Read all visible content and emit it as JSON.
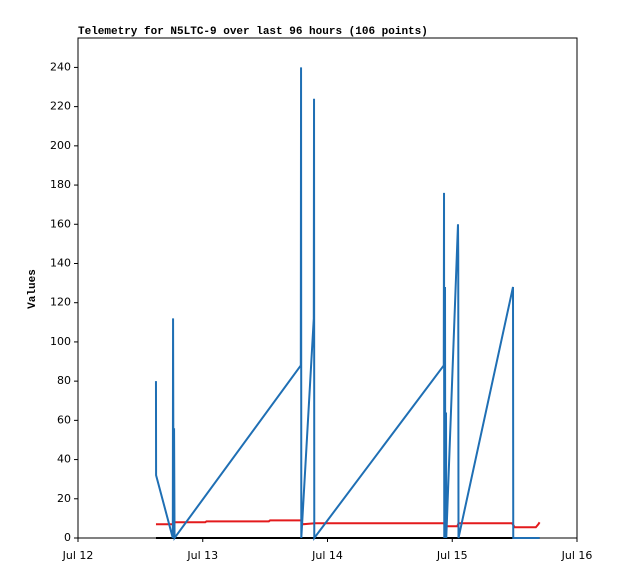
{
  "chart_data": {
    "type": "line",
    "title": "Telemetry for N5LTC-9 over last 96 hours (106 points)",
    "y_label": "Values",
    "xlim": [
      12,
      16
    ],
    "xticks": [
      {
        "value": 12,
        "label": "Jul 12"
      },
      {
        "value": 13,
        "label": "Jul 13"
      },
      {
        "value": 14,
        "label": "Jul 14"
      },
      {
        "value": 15,
        "label": "Jul 15"
      },
      {
        "value": 16,
        "label": "Jul 16"
      }
    ],
    "ylim": [
      0,
      255
    ],
    "yticks": [
      0,
      20,
      40,
      60,
      80,
      100,
      120,
      140,
      160,
      180,
      200,
      220,
      240
    ],
    "grid": false,
    "series": [
      {
        "color": "#000000",
        "x": [
          12.625,
          15.7
        ],
        "values": [
          0,
          0
        ]
      },
      {
        "color": "#e31a1c",
        "x": [
          12.625,
          12.76,
          12.77,
          13.02,
          13.03,
          13.53,
          13.54,
          13.79,
          13.8,
          13.9,
          14.93,
          14.96,
          15.04,
          15.05,
          15.48,
          15.5,
          15.67,
          15.69,
          15.7
        ],
        "values": [
          7,
          7,
          8,
          8,
          8.5,
          8.5,
          9,
          9,
          7,
          7.5,
          7.5,
          6,
          6,
          7.5,
          7.5,
          5.5,
          5.5,
          7,
          8
        ]
      },
      {
        "color": "#1f6fb4",
        "x": [
          12.625,
          12.626,
          12.76,
          12.762,
          12.766,
          12.77,
          12.774,
          13.786,
          13.788,
          13.79,
          13.89,
          13.892,
          13.894,
          14.932,
          14.934,
          14.936,
          14.942,
          14.944,
          14.95,
          14.952,
          15.046,
          15.048,
          15.05,
          15.487,
          15.489,
          15.7
        ],
        "values": [
          80,
          32,
          0,
          112,
          0,
          56,
          0,
          88,
          240,
          0,
          112,
          224,
          0,
          88,
          176,
          0,
          128,
          0,
          64,
          0,
          160,
          144,
          0,
          128,
          0,
          0
        ]
      }
    ]
  }
}
